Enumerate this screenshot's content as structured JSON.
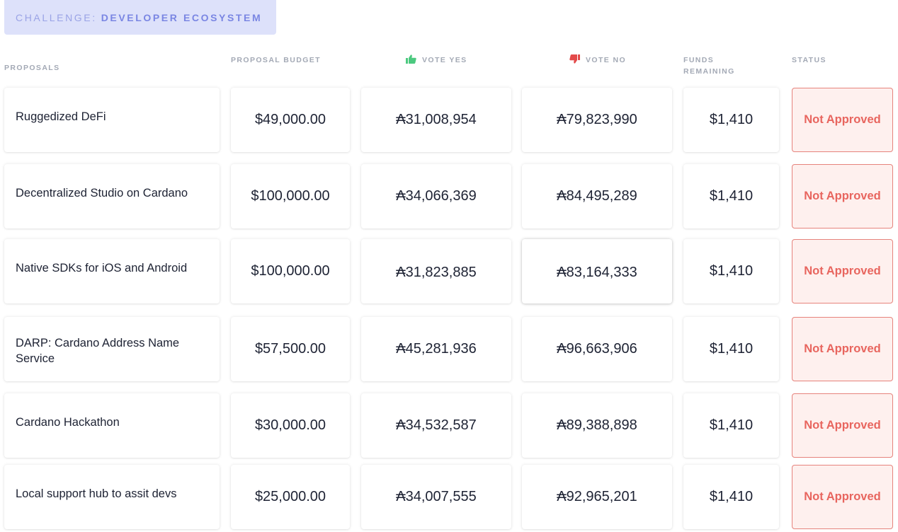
{
  "challenge": {
    "prefix": "CHALLENGE:",
    "name": "DEVELOPER ECOSYSTEM"
  },
  "columns": {
    "proposals": "PROPOSALS",
    "budget": "PROPOSAL BUDGET",
    "vote_yes": "VOTE YES",
    "vote_no": "VOTE NO",
    "funds_remaining_1": "FUNDS",
    "funds_remaining_2": "REMAINING",
    "status": "STATUS"
  },
  "icons": {
    "vote_yes": "thumbs-up-icon",
    "vote_no": "thumbs-down-icon"
  },
  "colors": {
    "yes": "#4cc97f",
    "no": "#e34a4a",
    "status_text": "#e8655e",
    "status_border": "#e6837c",
    "status_bg": "#fef0ee",
    "accent": "#7a86e3"
  },
  "rows": [
    {
      "title": "Ruggedized DeFi",
      "budget": "$49,000.00",
      "yes": "₳31,008,954",
      "no": "₳79,823,990",
      "funds": "$1,410",
      "status": "Not Approved"
    },
    {
      "title": "Decentralized Studio on Cardano",
      "budget": "$100,000.00",
      "yes": "₳34,066,369",
      "no": "₳84,495,289",
      "funds": "$1,410",
      "status": "Not Approved"
    },
    {
      "title": "Native SDKs for iOS and Android",
      "budget": "$100,000.00",
      "yes": "₳31,823,885",
      "no": "₳83,164,333",
      "funds": "$1,410",
      "status": "Not Approved"
    },
    {
      "title": "DARP: Cardano Address Name Service",
      "budget": "$57,500.00",
      "yes": "₳45,281,936",
      "no": "₳96,663,906",
      "funds": "$1,410",
      "status": "Not Approved"
    },
    {
      "title": "Cardano Hackathon",
      "budget": "$30,000.00",
      "yes": "₳34,532,587",
      "no": "₳89,388,898",
      "funds": "$1,410",
      "status": "Not Approved"
    },
    {
      "title": "Local support hub to assit devs",
      "budget": "$25,000.00",
      "yes": "₳34,007,555",
      "no": "₳92,965,201",
      "funds": "$1,410",
      "status": "Not Approved"
    }
  ]
}
